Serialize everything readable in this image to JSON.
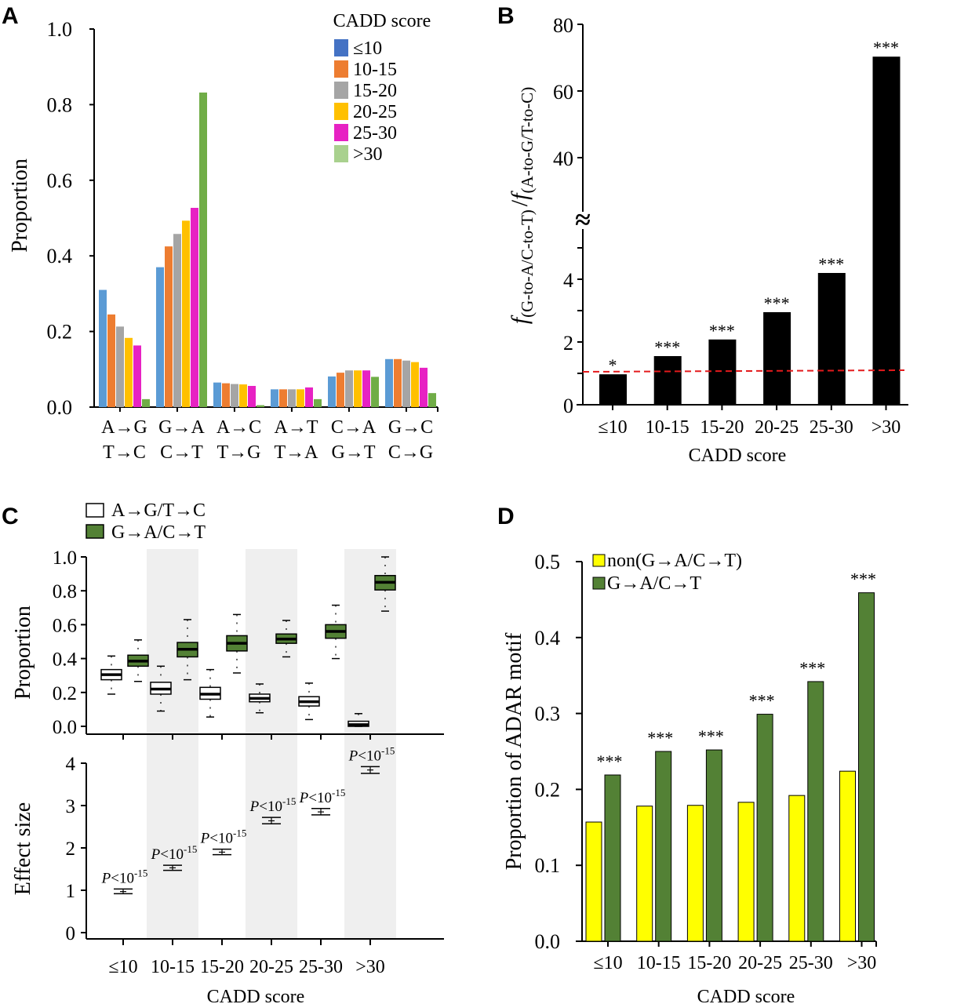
{
  "figure": {
    "panel_letters": [
      "A",
      "B",
      "C",
      "D"
    ]
  },
  "chart_data": [
    {
      "panel": "A",
      "type": "bar",
      "title": "",
      "xlabel": "",
      "ylabel": "Proportion",
      "ylim": [
        0,
        1.0
      ],
      "yticks": [
        "0.0",
        "0.2",
        "0.4",
        "0.6",
        "0.8",
        "1.0"
      ],
      "categories": [
        {
          "line1": "A→G",
          "line2": "T→C"
        },
        {
          "line1": "G→A",
          "line2": "C→T"
        },
        {
          "line1": "A→C",
          "line2": "T→G"
        },
        {
          "line1": "A→T",
          "line2": "T→A"
        },
        {
          "line1": "C→A",
          "line2": "G→T"
        },
        {
          "line1": "G→C",
          "line2": "C→G"
        }
      ],
      "legend_title": "CADD score",
      "legend_position": "top-right",
      "series": [
        {
          "name": "≤10",
          "color": "#5b9bd5",
          "legend_color": "#4472c4",
          "values": [
            0.31,
            0.37,
            0.065,
            0.047,
            0.081,
            0.127
          ]
        },
        {
          "name": "10-15",
          "color": "#ed7d31",
          "legend_color": "#ed7d31",
          "values": [
            0.245,
            0.425,
            0.063,
            0.047,
            0.091,
            0.127
          ]
        },
        {
          "name": "15-20",
          "color": "#a5a5a5",
          "legend_color": "#a5a5a5",
          "values": [
            0.213,
            0.458,
            0.061,
            0.047,
            0.097,
            0.123
          ]
        },
        {
          "name": "20-25",
          "color": "#ffc000",
          "legend_color": "#ffc000",
          "values": [
            0.183,
            0.493,
            0.06,
            0.047,
            0.097,
            0.119
          ]
        },
        {
          "name": "25-30",
          "color": "#e722c3",
          "legend_color": "#e722c3",
          "values": [
            0.163,
            0.527,
            0.056,
            0.052,
            0.097,
            0.104
          ]
        },
        {
          "name": ">30",
          "color": "#70ad47",
          "legend_color": "#a9d18e",
          "values": [
            0.021,
            0.832,
            0.005,
            0.021,
            0.08,
            0.037
          ]
        }
      ]
    },
    {
      "panel": "B",
      "type": "bar",
      "title": "",
      "xlabel": "CADD score",
      "ylabel_main": "f",
      "ylabel_num_sub": "(G-to-A/C-to-T)",
      "ylabel_sep": "/",
      "ylabel_den_sub": "(A-to-G/T-to-C)",
      "axis_break_symbol": "≈",
      "ylim_lower": [
        0,
        6
      ],
      "ylim_upper": [
        20,
        80
      ],
      "yticks_lower": [
        "0",
        "2",
        "4"
      ],
      "yticks_upper": [
        "40",
        "60",
        "80"
      ],
      "categories": [
        "≤10",
        "10-15",
        "15-20",
        "20-25",
        "25-30",
        ">30"
      ],
      "values": [
        0.97,
        1.55,
        2.08,
        2.95,
        4.2,
        70.3
      ],
      "bar_color": "#000000",
      "significance": [
        "*",
        "***",
        "***",
        "***",
        "***",
        "***"
      ],
      "reference_line": {
        "value": 1.0,
        "color": "#e41a1c",
        "style": "dashed"
      }
    },
    {
      "panel": "C-top",
      "type": "box",
      "title": "",
      "xlabel": "",
      "ylabel": "Proportion",
      "ylim": [
        0,
        1.0
      ],
      "yticks": [
        "0.0",
        "0.2",
        "0.4",
        "0.6",
        "0.8",
        "1.0"
      ],
      "categories": [
        "≤10",
        "10-15",
        "15-20",
        "20-25",
        "25-30",
        ">30"
      ],
      "shaded_categories": [
        "10-15",
        "20-25",
        ">30"
      ],
      "legend_position": "top-left",
      "series": [
        {
          "name": "A→G/T→C",
          "color": "#ffffff",
          "boxes": [
            {
              "min": 0.19,
              "q1": 0.275,
              "median": 0.305,
              "q3": 0.335,
              "max": 0.415
            },
            {
              "min": 0.09,
              "q1": 0.19,
              "median": 0.22,
              "q3": 0.26,
              "max": 0.355
            },
            {
              "min": 0.055,
              "q1": 0.16,
              "median": 0.19,
              "q3": 0.23,
              "max": 0.335
            },
            {
              "min": 0.08,
              "q1": 0.145,
              "median": 0.165,
              "q3": 0.19,
              "max": 0.25
            },
            {
              "min": 0.04,
              "q1": 0.12,
              "median": 0.145,
              "q3": 0.175,
              "max": 0.255
            },
            {
              "min": 0.0,
              "q1": 0.0,
              "median": 0.01,
              "q3": 0.03,
              "max": 0.075
            }
          ]
        },
        {
          "name": "G→A/C→T",
          "color": "#538135",
          "boxes": [
            {
              "min": 0.265,
              "q1": 0.355,
              "median": 0.385,
              "q3": 0.42,
              "max": 0.51
            },
            {
              "min": 0.275,
              "q1": 0.41,
              "median": 0.455,
              "q3": 0.495,
              "max": 0.63
            },
            {
              "min": 0.315,
              "q1": 0.445,
              "median": 0.49,
              "q3": 0.535,
              "max": 0.66
            },
            {
              "min": 0.41,
              "q1": 0.49,
              "median": 0.515,
              "q3": 0.545,
              "max": 0.625
            },
            {
              "min": 0.4,
              "q1": 0.52,
              "median": 0.56,
              "q3": 0.6,
              "max": 0.715
            },
            {
              "min": 0.68,
              "q1": 0.805,
              "median": 0.85,
              "q3": 0.89,
              "max": 1.0
            }
          ]
        }
      ]
    },
    {
      "panel": "C-bottom",
      "type": "errorbar",
      "title": "",
      "xlabel": "CADD score",
      "ylabel": "Effect size",
      "ylim": [
        0,
        4
      ],
      "yticks": [
        "0",
        "1",
        "2",
        "3",
        "4"
      ],
      "categories": [
        "≤10",
        "10-15",
        "15-20",
        "20-25",
        "25-30",
        ">30"
      ],
      "values": [
        0.97,
        1.53,
        1.9,
        2.64,
        2.85,
        3.84
      ],
      "lower": [
        0.92,
        1.47,
        1.84,
        2.57,
        2.78,
        3.76
      ],
      "upper": [
        1.03,
        1.59,
        1.97,
        2.72,
        2.93,
        3.92
      ],
      "annotations": [
        "P<10-15",
        "P<10-15",
        "P<10-15",
        "P<10-15",
        "P<10-15",
        "P<10-15"
      ],
      "annotation_parts": {
        "p": "P",
        "lt": "<10",
        "exp": "-15"
      }
    },
    {
      "panel": "D",
      "type": "bar",
      "title": "",
      "xlabel": "CADD score",
      "ylabel": "Proportion of ADAR motif",
      "ylim": [
        0,
        0.5
      ],
      "yticks": [
        "0.0",
        "0.1",
        "0.2",
        "0.3",
        "0.4",
        "0.5"
      ],
      "categories": [
        "≤10",
        "10-15",
        "15-20",
        "20-25",
        "25-30",
        ">30"
      ],
      "legend_position": "top-left",
      "series": [
        {
          "name": "non(G→A/C→T)",
          "color": "#ffff00",
          "values": [
            0.157,
            0.178,
            0.179,
            0.183,
            0.192,
            0.224
          ]
        },
        {
          "name": "G→A/C→T",
          "color": "#538135",
          "values": [
            0.219,
            0.25,
            0.252,
            0.299,
            0.342,
            0.459
          ]
        }
      ],
      "significance": [
        "***",
        "***",
        "***",
        "***",
        "***",
        "***"
      ]
    }
  ]
}
